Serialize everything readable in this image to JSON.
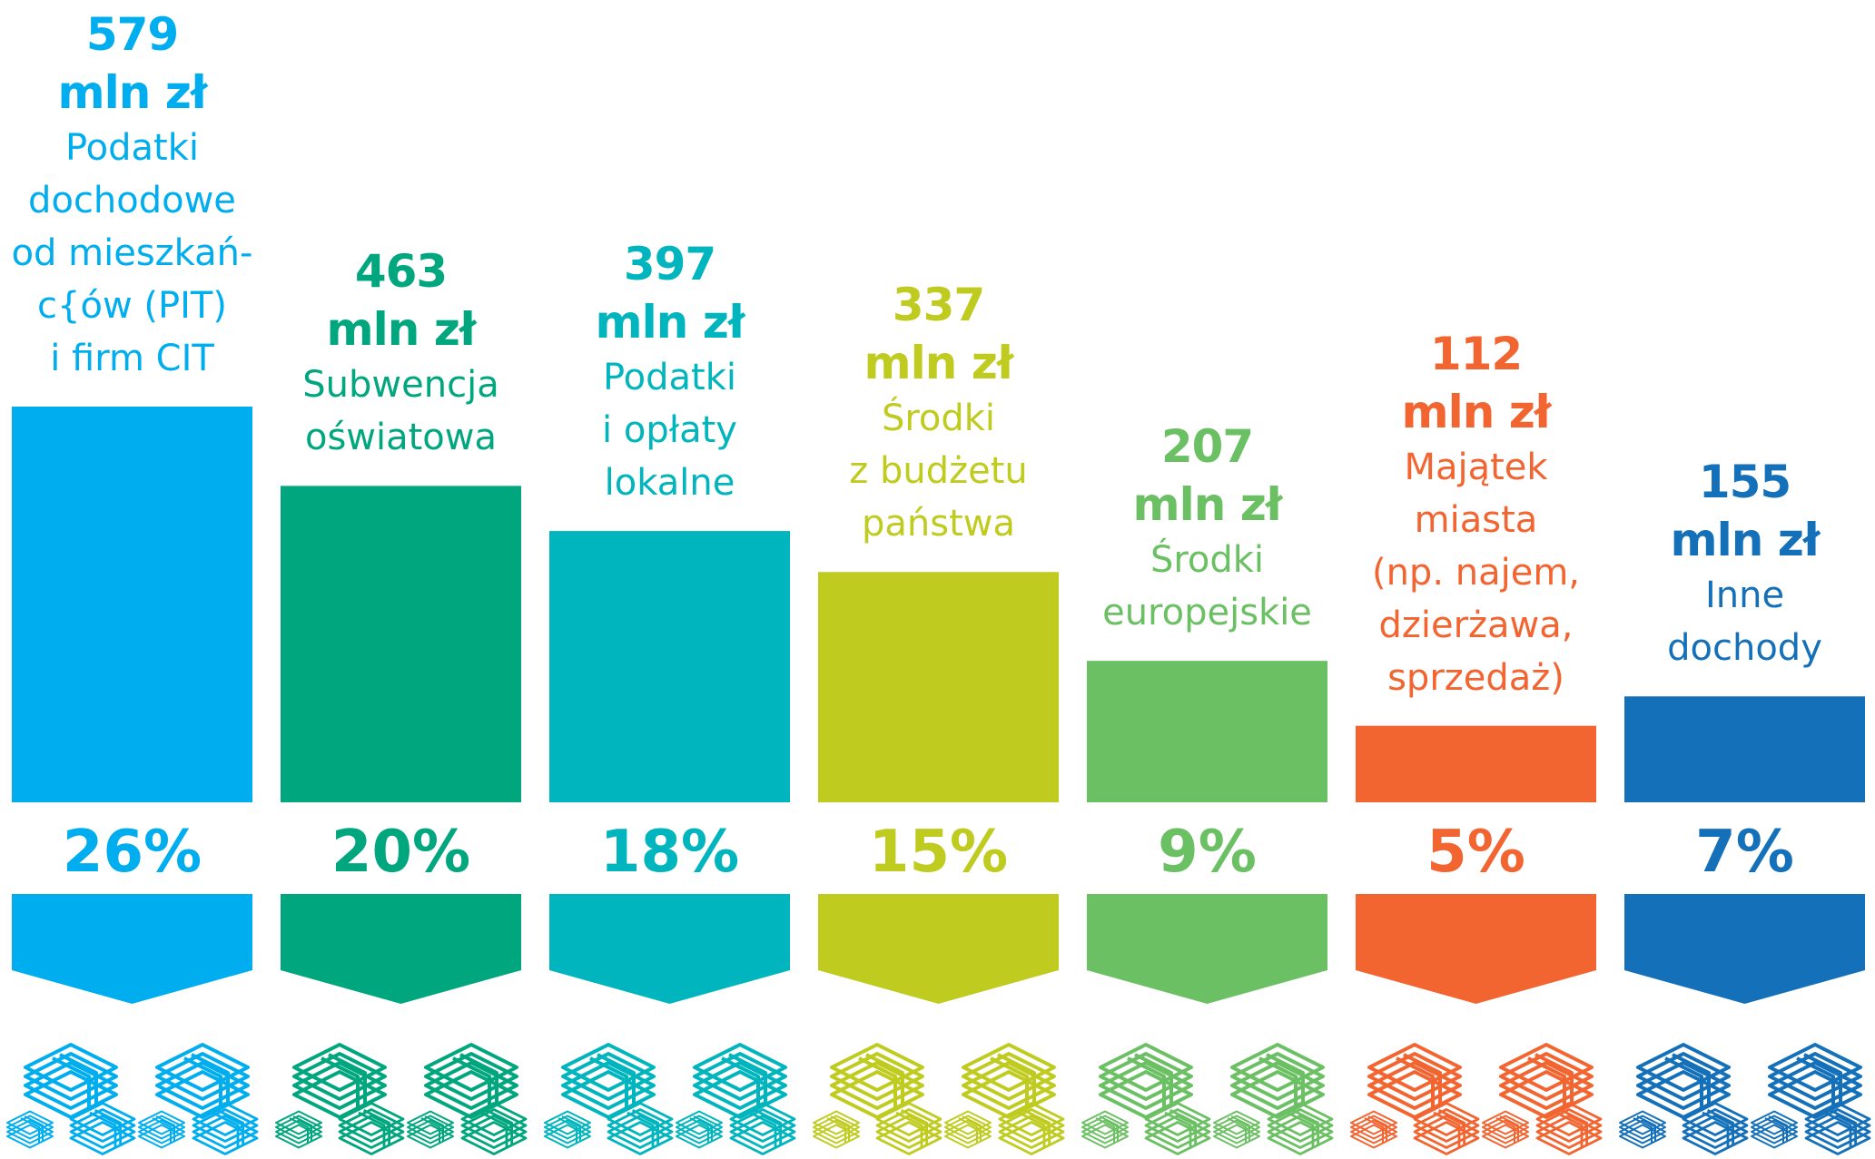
{
  "chart_data": {
    "type": "bar",
    "categories": [
      "Podatki\ndochodowe\nod mieszkań-\nc{ów (PIT)\ni firm CIT",
      "Subwencja\noświatowa",
      "Podatki\ni opłaty\nlokalne",
      "Środki\nz budżetu\npaństwa",
      "Środki\neuropejskie",
      "Majątek\nmiasta\n(np. najem,\ndzierżawa,\nsprzedaż)",
      "Inne\ndochody"
    ],
    "values": [
      579,
      463,
      397,
      337,
      207,
      112,
      155
    ],
    "value_labels": [
      "579\nmln zł",
      "463\nmln zł",
      "397\nmln zł",
      "337\nmln zł",
      "207\nmln zł",
      "112\nmln zł",
      "155\nmln zł"
    ],
    "percentages": [
      26,
      20,
      18,
      15,
      9,
      5,
      7
    ],
    "percentage_labels": [
      "26%",
      "20%",
      "18%",
      "15%",
      "9%",
      "5%",
      "7%"
    ],
    "colors": [
      "#00aeef",
      "#00a77e",
      "#00b5bd",
      "#bfcc1f",
      "#6cc064",
      "#f26531",
      "#1470b9"
    ]
  }
}
